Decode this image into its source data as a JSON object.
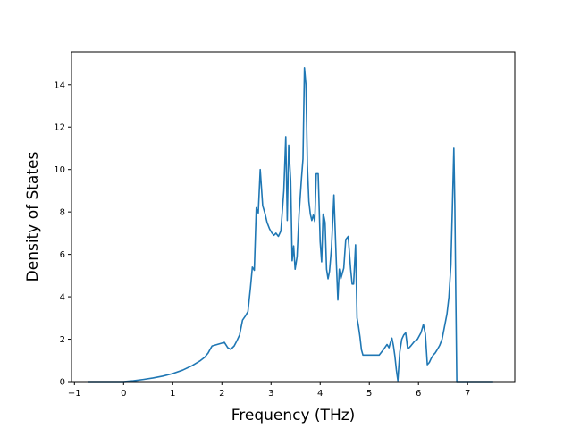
{
  "chart_data": {
    "type": "line",
    "title": "",
    "xlabel": "Frequency (THz)",
    "ylabel": "Density of States",
    "xlim": [
      -1.06,
      7.96
    ],
    "ylim": [
      0,
      15.55
    ],
    "xticks": [
      -1,
      0,
      1,
      2,
      3,
      4,
      5,
      6,
      7
    ],
    "xtick_labels": [
      "−1",
      "0",
      "1",
      "2",
      "3",
      "4",
      "5",
      "6",
      "7"
    ],
    "yticks": [
      0,
      2,
      4,
      6,
      8,
      10,
      12,
      14
    ],
    "ytick_labels": [
      "0",
      "2",
      "4",
      "6",
      "8",
      "10",
      "12",
      "14"
    ],
    "grid": false,
    "line_color": "#1f77b4",
    "series": [
      {
        "x": [
          -0.72,
          -0.3,
          0.0,
          0.2,
          0.4,
          0.6,
          0.8,
          1.0,
          1.2,
          1.4,
          1.55,
          1.65,
          1.72,
          1.76,
          1.8,
          2.05,
          2.12,
          2.18,
          2.25,
          2.3,
          2.36,
          2.42,
          2.48,
          2.53,
          2.58,
          2.62,
          2.66,
          2.7,
          2.74,
          2.78,
          2.83,
          2.88,
          2.92,
          2.97,
          3.02,
          3.06,
          3.1,
          3.15,
          3.2,
          3.26,
          3.3,
          3.33,
          3.36,
          3.4,
          3.43,
          3.46,
          3.49,
          3.53,
          3.57,
          3.62,
          3.65,
          3.68,
          3.71,
          3.74,
          3.77,
          3.8,
          3.83,
          3.86,
          3.89,
          3.92,
          3.96,
          4.0,
          4.03,
          4.06,
          4.08,
          4.1,
          4.13,
          4.16,
          4.19,
          4.23,
          4.28,
          4.33,
          4.36,
          4.39,
          4.42,
          4.45,
          4.48,
          4.52,
          4.57,
          4.62,
          4.65,
          4.68,
          4.72,
          4.75,
          4.78,
          4.81,
          4.84,
          4.87,
          4.9,
          4.94,
          4.98,
          5.03,
          5.1,
          5.2,
          5.3,
          5.36,
          5.4,
          5.43,
          5.46,
          5.49,
          5.52,
          5.55,
          5.58,
          5.62,
          5.66,
          5.7,
          5.74,
          5.78,
          5.81,
          5.85,
          5.92,
          5.98,
          6.05,
          6.1,
          6.14,
          6.18,
          6.22,
          6.26,
          6.3,
          6.34,
          6.38,
          6.43,
          6.48,
          6.53,
          6.58,
          6.62,
          6.66,
          6.69,
          6.72,
          6.74,
          6.76,
          6.78,
          6.8,
          6.82,
          6.9,
          7.1,
          7.3,
          7.52
        ],
        "y": [
          0,
          0,
          0,
          0.04,
          0.1,
          0.17,
          0.26,
          0.38,
          0.54,
          0.76,
          0.97,
          1.15,
          1.35,
          1.52,
          1.68,
          1.85,
          1.6,
          1.52,
          1.68,
          1.9,
          2.2,
          2.9,
          3.1,
          3.3,
          4.4,
          5.4,
          5.25,
          8.2,
          7.95,
          10.0,
          8.3,
          7.9,
          7.5,
          7.2,
          7.0,
          6.9,
          7.0,
          6.85,
          7.1,
          9.0,
          11.55,
          7.6,
          11.15,
          9.5,
          5.7,
          6.4,
          5.3,
          5.9,
          7.9,
          9.6,
          10.5,
          14.8,
          14.0,
          10.2,
          8.5,
          7.9,
          7.6,
          7.85,
          7.55,
          9.8,
          9.8,
          6.6,
          5.65,
          7.9,
          7.75,
          7.5,
          5.3,
          4.85,
          5.2,
          6.3,
          8.8,
          5.55,
          3.85,
          5.3,
          4.85,
          5.1,
          5.35,
          6.7,
          6.85,
          5.3,
          4.6,
          4.6,
          6.45,
          3.0,
          2.6,
          2.1,
          1.5,
          1.25,
          1.25,
          1.25,
          1.25,
          1.25,
          1.25,
          1.25,
          1.55,
          1.75,
          1.6,
          1.85,
          2.05,
          1.7,
          1.2,
          0.55,
          0.05,
          1.4,
          2.0,
          2.2,
          2.3,
          1.55,
          1.6,
          1.7,
          1.9,
          2.0,
          2.3,
          2.7,
          2.25,
          0.8,
          0.9,
          1.1,
          1.25,
          1.35,
          1.5,
          1.7,
          2.0,
          2.6,
          3.2,
          4.0,
          5.5,
          8.2,
          11.0,
          8.3,
          4.0,
          0.0,
          0.0,
          0.0,
          0.0,
          0.0,
          0.0,
          0.0
        ]
      }
    ]
  }
}
